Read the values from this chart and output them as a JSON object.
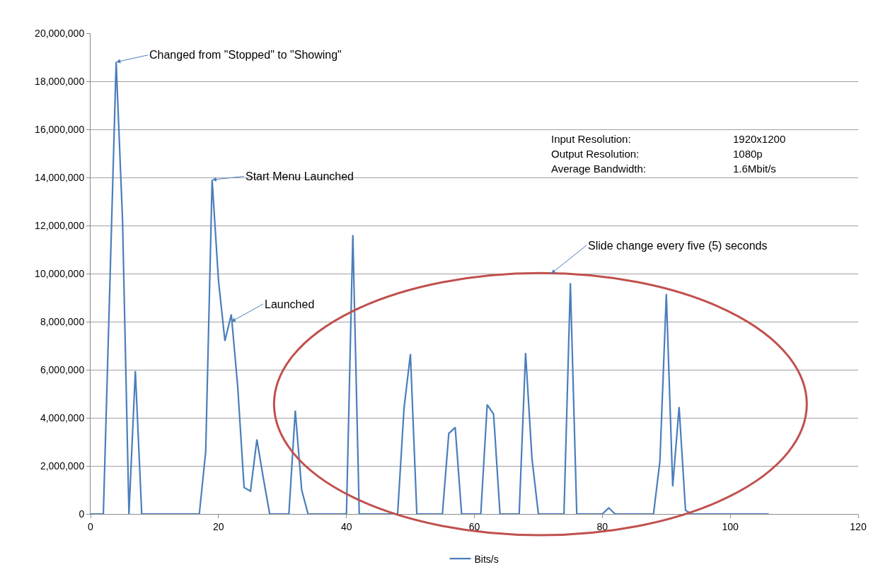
{
  "chart_data": {
    "type": "line",
    "x": [
      0,
      1,
      2,
      3,
      4,
      5,
      6,
      7,
      8,
      9,
      10,
      11,
      12,
      13,
      14,
      15,
      16,
      17,
      18,
      19,
      20,
      21,
      22,
      23,
      24,
      25,
      26,
      27,
      28,
      29,
      30,
      31,
      32,
      33,
      34,
      35,
      36,
      37,
      38,
      39,
      40,
      41,
      42,
      43,
      44,
      45,
      46,
      47,
      48,
      49,
      50,
      51,
      52,
      53,
      54,
      55,
      56,
      57,
      58,
      59,
      60,
      61,
      62,
      63,
      64,
      65,
      66,
      67,
      68,
      69,
      70,
      71,
      72,
      73,
      74,
      75,
      76,
      77,
      78,
      79,
      80,
      81,
      82,
      83,
      84,
      85,
      86,
      87,
      88,
      89,
      90,
      91,
      92,
      93,
      94,
      95,
      96,
      97,
      98,
      99,
      100,
      101,
      102,
      103,
      104,
      105,
      106
    ],
    "series": [
      {
        "name": "Bits/s",
        "color": "#4a7ebb",
        "values": [
          0,
          0,
          0,
          9400000,
          18800000,
          12200000,
          0,
          5950000,
          0,
          0,
          0,
          0,
          0,
          0,
          0,
          0,
          0,
          0,
          2600000,
          13900000,
          9700000,
          7200000,
          8300000,
          5300000,
          1100000,
          950000,
          3100000,
          1500000,
          0,
          0,
          0,
          0,
          4300000,
          1000000,
          0,
          0,
          0,
          0,
          0,
          0,
          0,
          11600000,
          0,
          0,
          0,
          0,
          0,
          0,
          0,
          4400000,
          6650000,
          0,
          0,
          0,
          0,
          0,
          3350000,
          3600000,
          0,
          0,
          0,
          0,
          4550000,
          4150000,
          0,
          0,
          0,
          0,
          6700000,
          2300000,
          0,
          0,
          0,
          0,
          0,
          9600000,
          0,
          0,
          0,
          0,
          0,
          250000,
          0,
          0,
          0,
          0,
          0,
          0,
          0,
          2200000,
          9150000,
          1150000,
          4450000,
          150000,
          0,
          0,
          0,
          0,
          0,
          0,
          0,
          0,
          0,
          0,
          0,
          0,
          0
        ]
      }
    ],
    "xlim": [
      0,
      120
    ],
    "xticks": [
      0,
      20,
      40,
      60,
      80,
      100,
      120
    ],
    "ylim": [
      0,
      20000000
    ],
    "yticks": [
      {
        "value": 0,
        "label": "0"
      },
      {
        "value": 2000000,
        "label": "2,000,000"
      },
      {
        "value": 4000000,
        "label": "4,000,000"
      },
      {
        "value": 6000000,
        "label": "6,000,000"
      },
      {
        "value": 8000000,
        "label": "8,000,000"
      },
      {
        "value": 10000000,
        "label": "10,000,000"
      },
      {
        "value": 12000000,
        "label": "12,000,000"
      },
      {
        "value": 14000000,
        "label": "14,000,000"
      },
      {
        "value": 16000000,
        "label": "16,000,000"
      },
      {
        "value": 18000000,
        "label": "18,000,000"
      },
      {
        "value": 20000000,
        "label": "20,000,000"
      }
    ],
    "grid": "y",
    "legend": "bottom",
    "marker": "none",
    "line_style": "solid",
    "annotations": [
      {
        "text": "Changed from \"Stopped\" to \"Showing\"",
        "x": 4,
        "y": 18800000
      },
      {
        "text": "Start Menu Launched",
        "x": 19,
        "y": 13900000
      },
      {
        "text": "Launched",
        "x": 22,
        "y": 8000000
      },
      "Slide change every five (5) seconds",
      "Input Resolution:",
      "1920x1200",
      "Output Resolution:",
      "1080p",
      "Average Bandwidth:",
      "1.6Mbit/s"
    ]
  }
}
